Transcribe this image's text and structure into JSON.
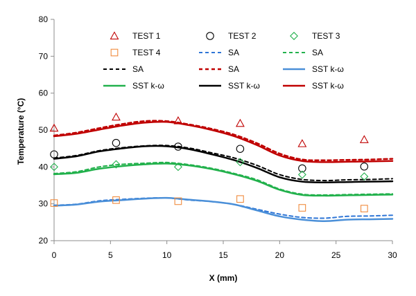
{
  "chart_data": {
    "type": "line",
    "title": "",
    "xlabel": "X (mm)",
    "ylabel": "Temperature (°C)",
    "xlim": [
      0,
      30
    ],
    "ylim": [
      20,
      80
    ],
    "xticks": [
      0,
      5,
      10,
      15,
      20,
      25,
      30
    ],
    "yticks": [
      20,
      30,
      40,
      50,
      60,
      70,
      80
    ],
    "grid": false,
    "legend_position": "top-right",
    "colors": {
      "red": "#c00000",
      "black": "#000000",
      "green": "#22b14c",
      "blue": "#4a8fd8",
      "blue_dash": "#2e75d6"
    },
    "series": [
      {
        "name": "TEST 1",
        "kind": "marker",
        "marker": "triangle",
        "color": "#c00000",
        "x": [
          0,
          5.5,
          11,
          16.5,
          22,
          27.5
        ],
        "y": [
          50.5,
          53.5,
          52.5,
          51.8,
          46.3,
          47.4
        ]
      },
      {
        "name": "TEST 2",
        "kind": "marker",
        "marker": "circle",
        "color": "#000000",
        "x": [
          0,
          5.5,
          11,
          16.5,
          22,
          27.5
        ],
        "y": [
          43.4,
          46.5,
          45.5,
          44.9,
          39.6,
          40.1
        ]
      },
      {
        "name": "TEST 3",
        "kind": "marker",
        "marker": "diamond",
        "color": "#22b14c",
        "x": [
          0,
          5.5,
          11,
          16.5,
          22,
          27.5
        ],
        "y": [
          40.0,
          40.7,
          40.0,
          41.3,
          37.9,
          37.4
        ]
      },
      {
        "name": "TEST 4",
        "kind": "marker",
        "marker": "square",
        "color": "#f08a3c",
        "x": [
          0,
          5.5,
          11,
          16.5,
          22,
          27.5
        ],
        "y": [
          30.2,
          31.0,
          30.7,
          31.3,
          28.9,
          28.7
        ]
      },
      {
        "name": "SA",
        "kind": "line",
        "dash": true,
        "width": 2,
        "color": "#2e75d6",
        "x": [
          0,
          2,
          4,
          6,
          8,
          10,
          12,
          14,
          16,
          18,
          20,
          22,
          24,
          26,
          28,
          30
        ],
        "y": [
          29.6,
          29.9,
          30.8,
          31.2,
          31.5,
          31.6,
          31.0,
          30.6,
          29.8,
          28.5,
          27.2,
          26.3,
          26.1,
          26.6,
          26.7,
          26.9
        ]
      },
      {
        "name": "SA",
        "kind": "line",
        "dash": true,
        "width": 2,
        "color": "#22b14c",
        "x": [
          0,
          2,
          4,
          6,
          8,
          10,
          12,
          14,
          16,
          18,
          20,
          22,
          24,
          26,
          28,
          30
        ],
        "y": [
          38.2,
          38.7,
          40.0,
          40.7,
          41.0,
          41.2,
          40.6,
          39.6,
          38.2,
          36.5,
          34.0,
          32.6,
          32.4,
          32.5,
          32.6,
          32.7
        ]
      },
      {
        "name": "SA",
        "kind": "line",
        "dash": true,
        "width": 2,
        "color": "#000000",
        "x": [
          0,
          2,
          4,
          6,
          8,
          10,
          12,
          14,
          16,
          18,
          20,
          22,
          24,
          26,
          28,
          30
        ],
        "y": [
          42.4,
          43.1,
          44.4,
          45.2,
          45.7,
          45.8,
          45.1,
          43.8,
          42.4,
          40.4,
          37.9,
          36.6,
          36.3,
          36.5,
          36.6,
          36.8
        ]
      },
      {
        "name": "SA",
        "kind": "line",
        "dash": true,
        "width": 2.5,
        "color": "#c00000",
        "x": [
          0,
          2,
          4,
          6,
          8,
          10,
          12,
          14,
          16,
          18,
          20,
          22,
          24,
          26,
          28,
          30
        ],
        "y": [
          48.5,
          49.3,
          50.5,
          51.6,
          52.4,
          52.4,
          51.5,
          50.3,
          48.7,
          46.4,
          43.6,
          42.0,
          41.8,
          41.9,
          42.0,
          42.2
        ]
      },
      {
        "name": "SST k-ω",
        "kind": "line",
        "dash": false,
        "width": 2.5,
        "color": "#4a8fd8",
        "x": [
          0,
          2,
          4,
          6,
          8,
          10,
          12,
          14,
          16,
          18,
          20,
          22,
          24,
          26,
          28,
          30
        ],
        "y": [
          29.5,
          29.8,
          30.6,
          31.0,
          31.4,
          31.6,
          31.1,
          30.6,
          29.8,
          28.2,
          26.6,
          25.7,
          25.3,
          25.7,
          25.8,
          25.9
        ]
      },
      {
        "name": "SST k-ω",
        "kind": "line",
        "dash": false,
        "width": 2.5,
        "color": "#22b14c",
        "x": [
          0,
          2,
          4,
          6,
          8,
          10,
          12,
          14,
          16,
          18,
          20,
          22,
          24,
          26,
          28,
          30
        ],
        "y": [
          38.0,
          38.4,
          39.5,
          40.2,
          40.7,
          40.9,
          40.4,
          39.4,
          38.0,
          36.2,
          33.8,
          32.4,
          32.2,
          32.3,
          32.4,
          32.5
        ]
      },
      {
        "name": "SST k-ω",
        "kind": "line",
        "dash": false,
        "width": 2.5,
        "color": "#000000",
        "x": [
          0,
          2,
          4,
          6,
          8,
          10,
          12,
          14,
          16,
          18,
          20,
          22,
          24,
          26,
          28,
          30
        ],
        "y": [
          42.2,
          42.9,
          44.2,
          45.0,
          45.6,
          45.6,
          44.8,
          43.4,
          41.8,
          39.7,
          37.2,
          36.0,
          35.8,
          35.9,
          36.0,
          36.1
        ]
      },
      {
        "name": "SST k-ω",
        "kind": "line",
        "dash": false,
        "width": 2.5,
        "color": "#c00000",
        "x": [
          0,
          2,
          4,
          6,
          8,
          10,
          12,
          14,
          16,
          18,
          20,
          22,
          24,
          26,
          28,
          30
        ],
        "y": [
          48.3,
          49.0,
          50.1,
          51.2,
          52.0,
          52.2,
          51.3,
          50.0,
          48.3,
          45.9,
          43.1,
          41.6,
          41.3,
          41.4,
          41.5,
          41.6
        ]
      }
    ],
    "legend": [
      {
        "label": "TEST 1",
        "series": 0
      },
      {
        "label": "TEST 2",
        "series": 1
      },
      {
        "label": "TEST 3",
        "series": 2
      },
      {
        "label": "TEST 4",
        "series": 3
      },
      {
        "label": "SA",
        "series": 4
      },
      {
        "label": "SA",
        "series": 5
      },
      {
        "label": "SA",
        "series": 6
      },
      {
        "label": "SA",
        "series": 7
      },
      {
        "label": "SST k-ω",
        "series": 8
      },
      {
        "label": "SST k-ω",
        "series": 9
      },
      {
        "label": "SST k-ω",
        "series": 10
      },
      {
        "label": "SST k-ω",
        "series": 11
      }
    ]
  }
}
